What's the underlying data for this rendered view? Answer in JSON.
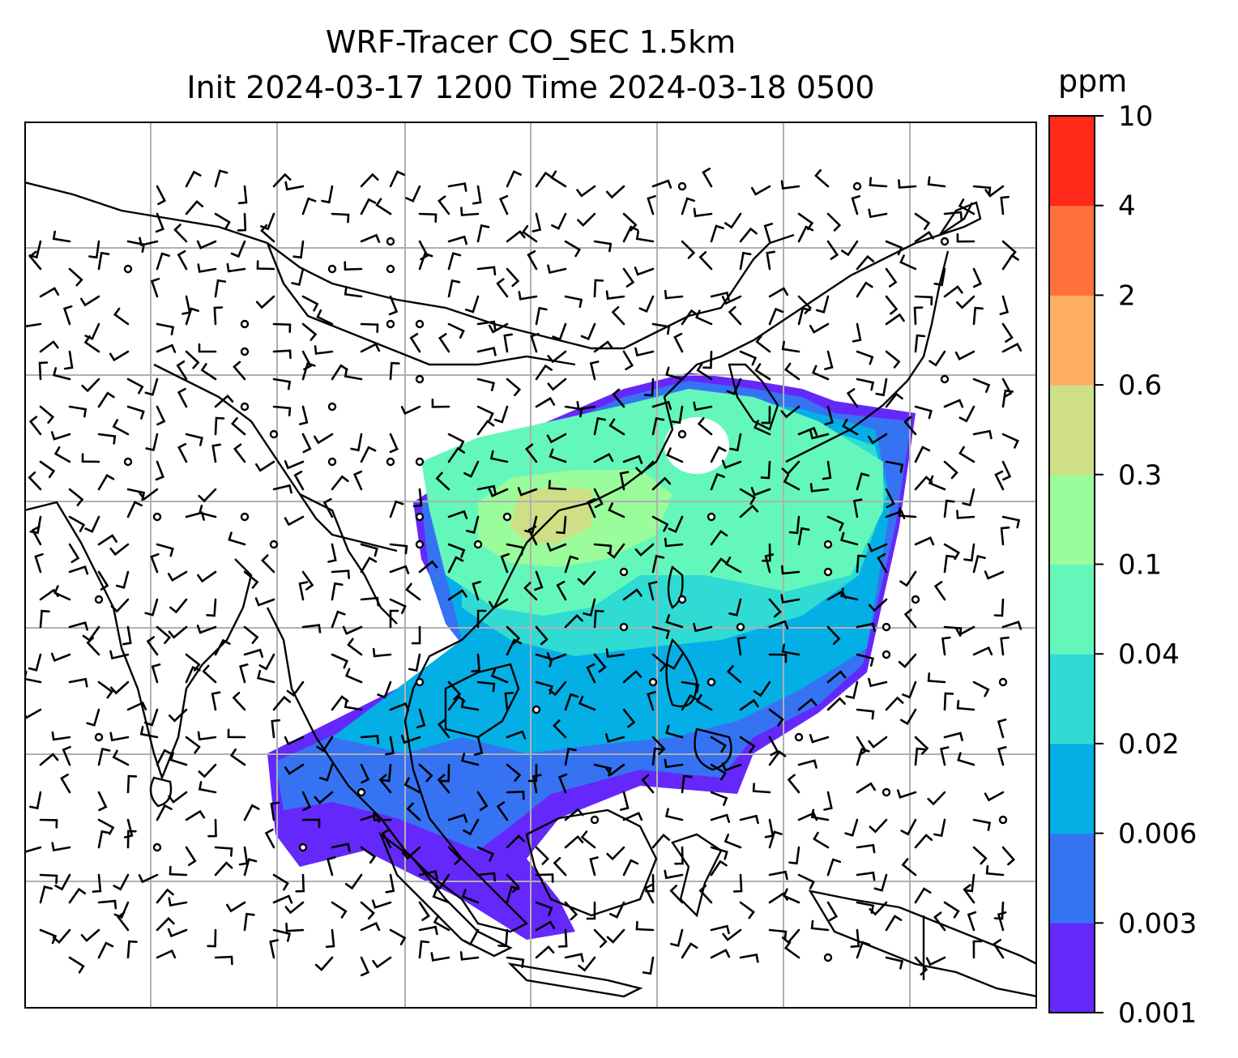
{
  "title": {
    "line1": "WRF-Tracer CO_SEC 1.5km",
    "line2": "Init 2024-03-17 1200 Time 2024-03-18 0500"
  },
  "colorbar": {
    "unit": "ppm",
    "levels": [
      "0.001",
      "0.003",
      "0.006",
      "0.02",
      "0.04",
      "0.1",
      "0.3",
      "0.6",
      "2",
      "4",
      "10"
    ],
    "colors": [
      "#6528fa",
      "#3573f3",
      "#04afe6",
      "#2fdbd3",
      "#64f7bb",
      "#9afc9b",
      "#cfdf85",
      "#fdae60",
      "#ff713a",
      "#ff2a19"
    ]
  },
  "map_style": {
    "coastline_color": "#000000",
    "grid_color": "#b0b0b0",
    "grid": true,
    "overlay": "wind barbs and calm circles"
  }
}
